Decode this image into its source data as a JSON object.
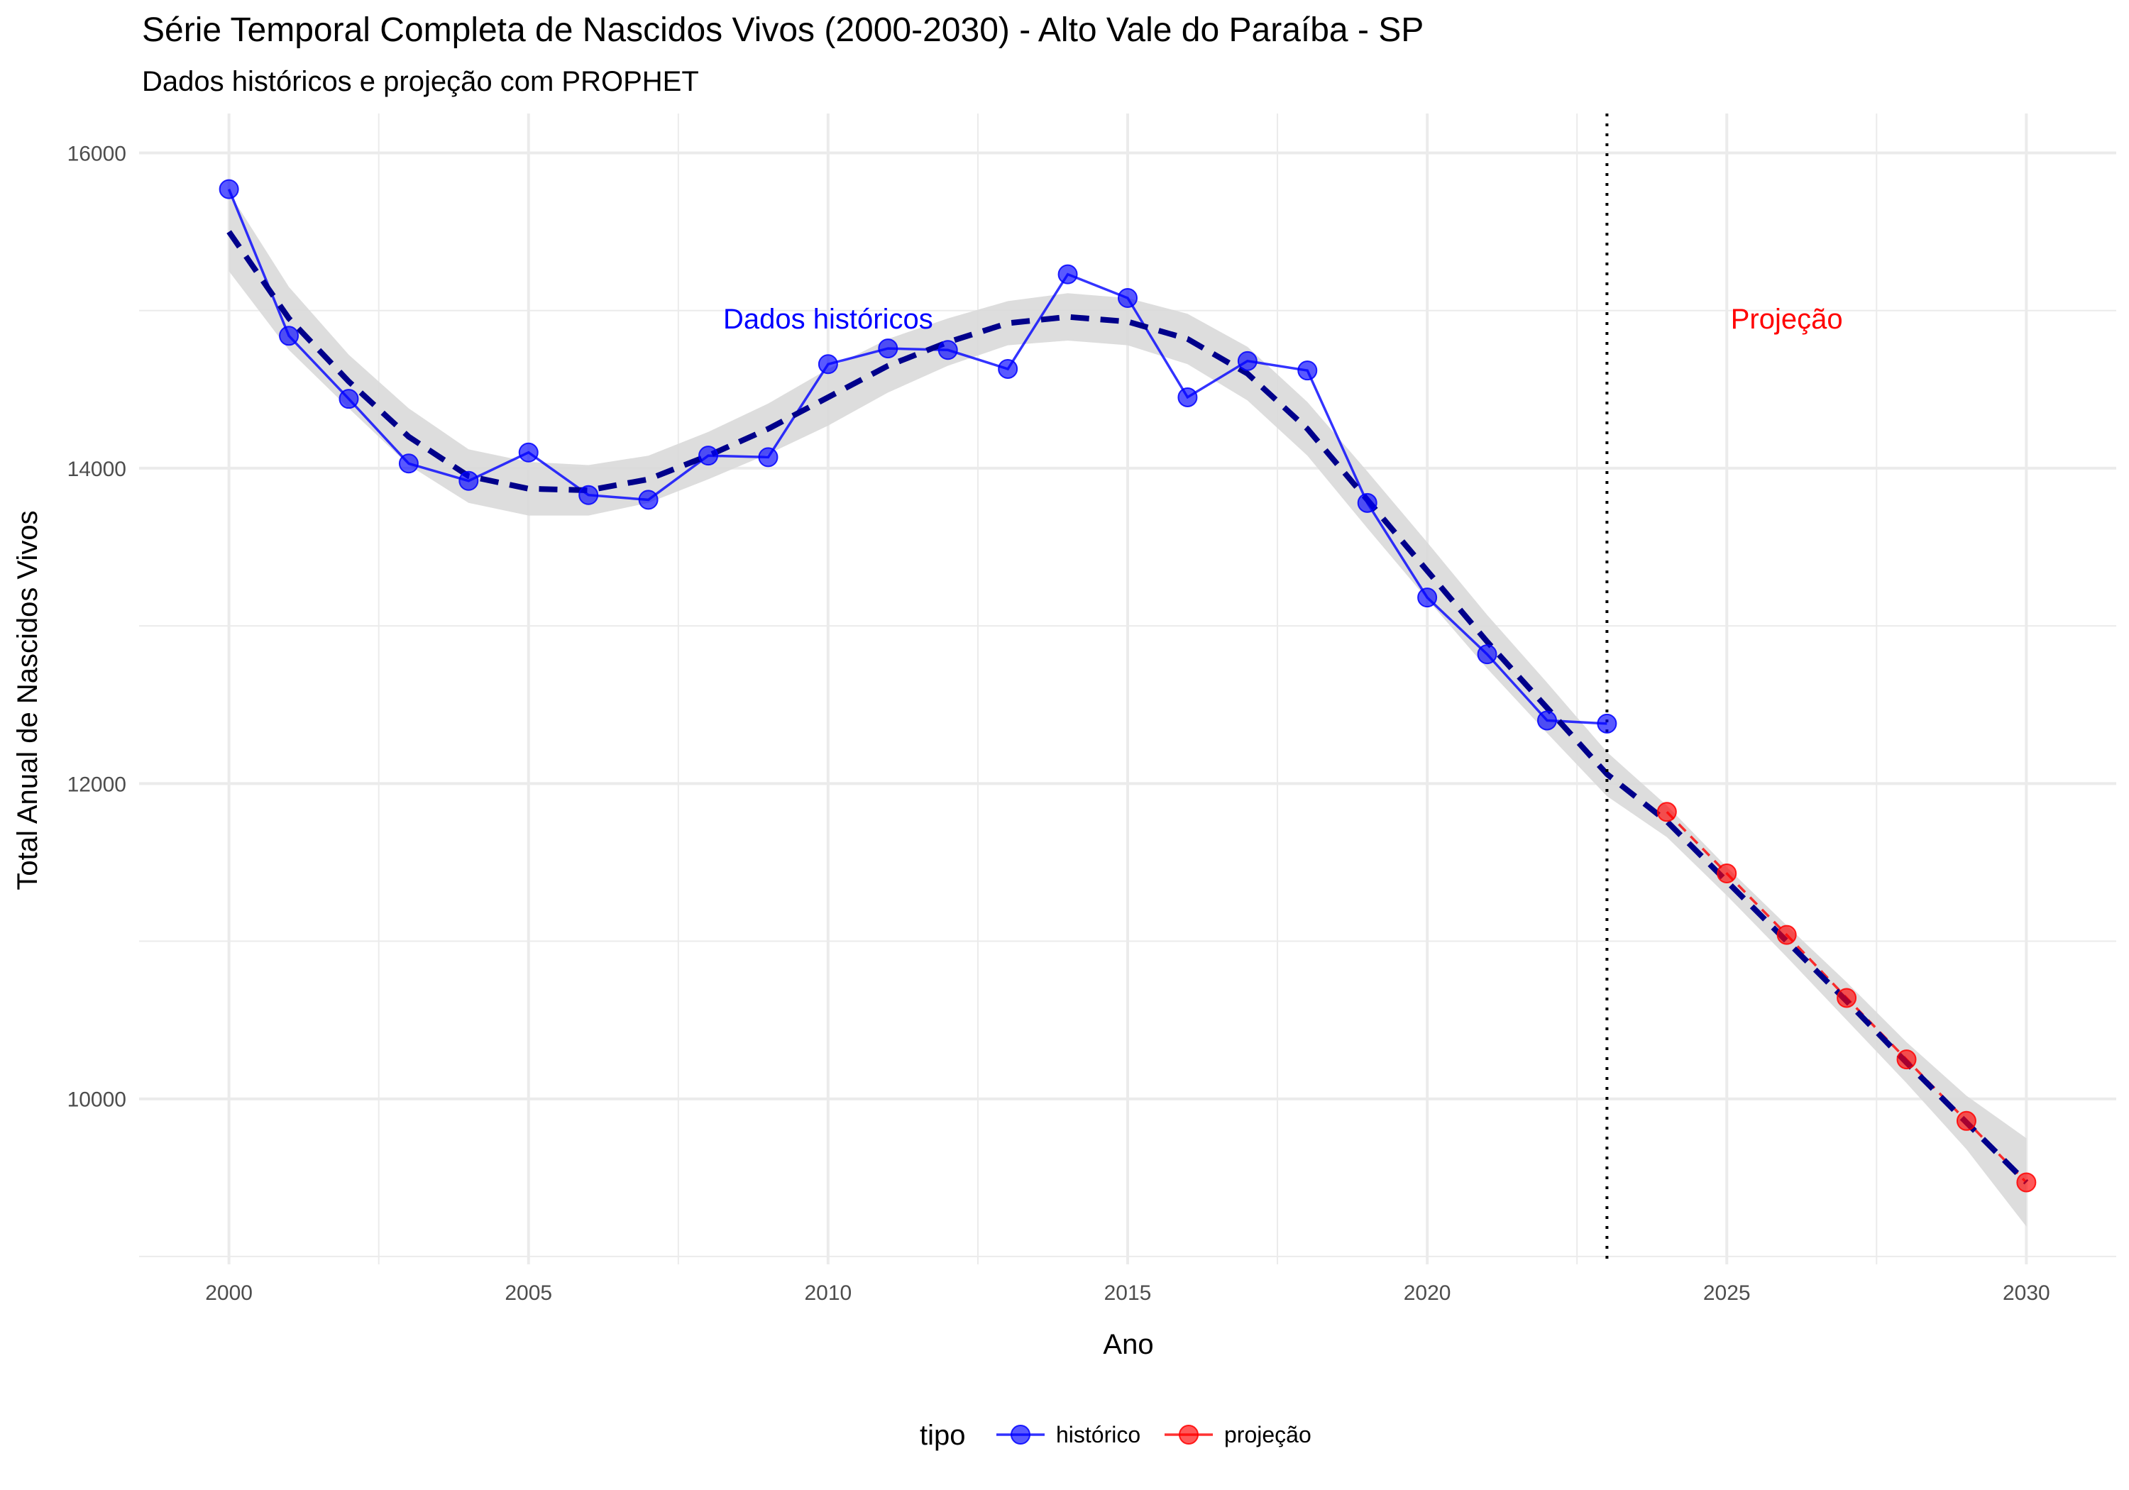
{
  "chart_data": {
    "type": "line",
    "title": "Série Temporal Completa de Nascidos Vivos (2000-2030) -  Alto Vale do Paraíba - SP",
    "subtitle": "Dados históricos e projeção com PROPHET",
    "xlabel": "Ano",
    "ylabel": "Total Anual de Nascidos Vivos",
    "xlim": [
      1998.5,
      2031.5
    ],
    "ylim": [
      8950,
      16250
    ],
    "x_ticks": [
      2000,
      2005,
      2010,
      2015,
      2020,
      2025,
      2030
    ],
    "x_tick_labels": [
      "2000",
      "2005",
      "2010",
      "2015",
      "2020",
      "2025",
      "2030"
    ],
    "y_ticks": [
      10000,
      12000,
      14000,
      16000
    ],
    "y_tick_labels": [
      "10000",
      "12000",
      "14000",
      "16000"
    ],
    "grid": true,
    "vline": {
      "x": 2023,
      "style": "dotted",
      "color": "#000000"
    },
    "annotations": [
      {
        "text": "Dados históricos",
        "x": 2010,
        "y": 14950,
        "color": "#0000ff"
      },
      {
        "text": "Projeção",
        "x": 2026,
        "y": 14950,
        "color": "#ff0000"
      }
    ],
    "legend": {
      "title": "tipo",
      "position": "bottom",
      "items": [
        {
          "label": "histórico",
          "color": "#0000ff"
        },
        {
          "label": "projeção",
          "color": "#ff0000"
        }
      ]
    },
    "series": [
      {
        "name": "histórico",
        "color": "#0000ff",
        "x": [
          2000,
          2001,
          2002,
          2003,
          2004,
          2005,
          2006,
          2007,
          2008,
          2009,
          2010,
          2011,
          2012,
          2013,
          2014,
          2015,
          2016,
          2017,
          2018,
          2019,
          2020,
          2021,
          2022,
          2023
        ],
        "y": [
          15770,
          14840,
          14440,
          14030,
          13920,
          14100,
          13830,
          13800,
          14080,
          14070,
          14660,
          14760,
          14750,
          14630,
          15230,
          15080,
          14450,
          14680,
          14620,
          13780,
          13180,
          12820,
          12400,
          12380
        ]
      },
      {
        "name": "projeção",
        "color": "#ff0000",
        "x": [
          2024,
          2025,
          2026,
          2027,
          2028,
          2029,
          2030
        ],
        "y": [
          11820,
          11430,
          11040,
          10640,
          10250,
          9860,
          9470
        ]
      }
    ],
    "trend": {
      "style": "dashed",
      "color": "#00008b",
      "band_color": "#d9d9d9",
      "x": [
        2000,
        2001,
        2002,
        2003,
        2004,
        2005,
        2006,
        2007,
        2008,
        2009,
        2010,
        2011,
        2012,
        2013,
        2014,
        2015,
        2016,
        2017,
        2018,
        2019,
        2020,
        2021,
        2022,
        2023,
        2024,
        2025,
        2026,
        2027,
        2028,
        2029,
        2030
      ],
      "y": [
        15500,
        14950,
        14550,
        14200,
        13950,
        13870,
        13860,
        13930,
        14080,
        14250,
        14450,
        14650,
        14800,
        14920,
        14960,
        14930,
        14820,
        14600,
        14250,
        13800,
        13350,
        12900,
        12480,
        12060,
        11760,
        11380,
        11000,
        10620,
        10230,
        9850,
        9470
      ],
      "lower": [
        15250,
        14750,
        14380,
        14020,
        13780,
        13700,
        13700,
        13780,
        13930,
        14090,
        14270,
        14480,
        14650,
        14780,
        14810,
        14780,
        14660,
        14430,
        14080,
        13620,
        13170,
        12730,
        12320,
        11920,
        11660,
        11290,
        10900,
        10500,
        10100,
        9680,
        9190
      ],
      "upper": [
        15750,
        15150,
        14720,
        14380,
        14120,
        14040,
        14020,
        14080,
        14230,
        14410,
        14630,
        14820,
        14950,
        15060,
        15110,
        15080,
        14980,
        14770,
        14420,
        13980,
        13530,
        13070,
        12640,
        12200,
        11860,
        11470,
        11100,
        10740,
        10360,
        10020,
        9750
      ]
    }
  }
}
